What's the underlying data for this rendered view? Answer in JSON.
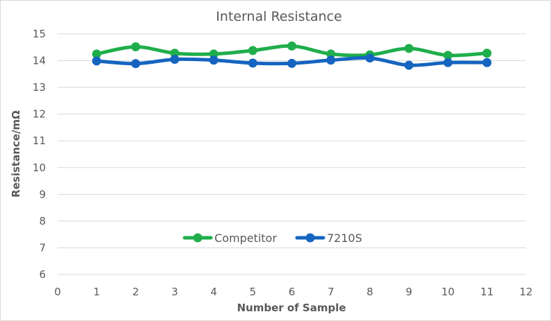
{
  "chart_data": {
    "type": "line",
    "title": "Internal Resistance",
    "xlabel": "Number of Sample",
    "ylabel": "Resistance/mΩ",
    "xlim": [
      0,
      12
    ],
    "ylim": [
      6,
      15
    ],
    "x_ticks": [
      0,
      1,
      2,
      3,
      4,
      5,
      6,
      7,
      8,
      9,
      10,
      11,
      12
    ],
    "y_ticks": [
      6,
      7,
      8,
      9,
      10,
      11,
      12,
      13,
      14,
      15
    ],
    "grid": "horizontal",
    "legend_position": "bottom-center",
    "x": [
      1,
      2,
      3,
      4,
      5,
      6,
      7,
      8,
      9,
      10,
      11
    ],
    "series": [
      {
        "name": "Competitor",
        "color": "#1fae4b",
        "values": [
          14.25,
          14.52,
          14.28,
          14.25,
          14.38,
          14.55,
          14.25,
          14.22,
          14.46,
          14.2,
          14.28
        ]
      },
      {
        "name": "7210S",
        "color": "#1565c0",
        "values": [
          13.99,
          13.89,
          14.05,
          14.02,
          13.91,
          13.9,
          14.02,
          14.1,
          13.83,
          13.93,
          13.93
        ]
      }
    ]
  }
}
